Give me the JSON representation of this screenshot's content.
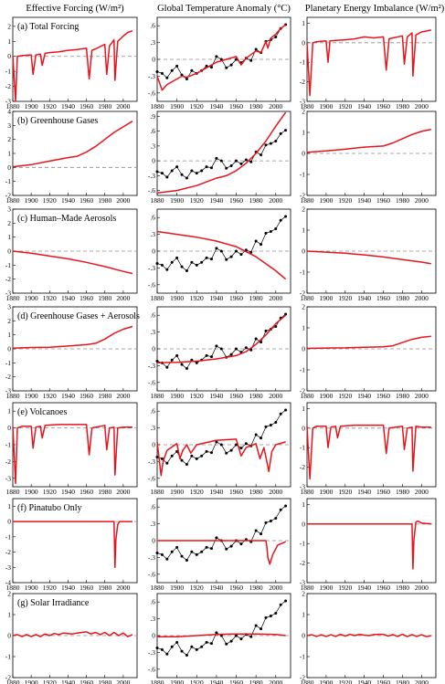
{
  "column_titles": [
    "Effective Forcing (W/m²)",
    "Global Temperature Anomaly (°C)",
    "Planetary Energy Imbalance (W/m²)"
  ],
  "colors": {
    "model": "#e8141c",
    "observed": "#000000",
    "zero_line": "#8c8c8c",
    "frame": "#000000"
  },
  "chart_data": {
    "type": "line",
    "x_ticks": [
      1880,
      1900,
      1920,
      1940,
      1960,
      1980,
      2000
    ],
    "xlim": [
      1880,
      2015
    ],
    "axes": {
      "forcing_yticks": [
        {
          "ylim": [
            -3,
            2.6
          ],
          "ticks": [
            -3,
            -2,
            -1,
            0,
            1,
            2
          ]
        },
        {
          "ylim": [
            -2,
            4
          ],
          "ticks": [
            -2,
            -1,
            0,
            1,
            2,
            3,
            4
          ]
        },
        {
          "ylim": [
            -3,
            3
          ],
          "ticks": [
            -3,
            -2,
            -1,
            0,
            1,
            2,
            3
          ]
        },
        {
          "ylim": [
            -3,
            3
          ],
          "ticks": [
            -3,
            -2,
            -1,
            0,
            1,
            2,
            3
          ]
        },
        {
          "ylim": [
            -3.5,
            1.5
          ],
          "ticks": [
            -3,
            -2,
            -1,
            0,
            1
          ]
        },
        {
          "ylim": [
            -4,
            1.5
          ],
          "ticks": [
            -4,
            -3,
            -2,
            -1,
            0,
            1
          ]
        },
        {
          "ylim": [
            -2,
            2
          ],
          "ticks": [
            -2,
            -1,
            0,
            1,
            2
          ]
        }
      ],
      "temperature_yticks": [
        {
          "ylim": [
            -0.75,
            0.75
          ],
          "ticks": [
            -0.6,
            -0.3,
            0,
            0.3,
            0.6
          ]
        },
        {
          "ylim": [
            -0.7,
            1.0
          ],
          "ticks": [
            -0.6,
            -0.3,
            0,
            0.3,
            0.6,
            0.9
          ]
        },
        {
          "ylim": [
            -0.75,
            0.75
          ],
          "ticks": [
            -0.6,
            -0.3,
            0,
            0.3,
            0.6
          ]
        },
        {
          "ylim": [
            -0.75,
            0.75
          ],
          "ticks": [
            -0.6,
            -0.3,
            0,
            0.3,
            0.6
          ]
        },
        {
          "ylim": [
            -0.75,
            0.75
          ],
          "ticks": [
            -0.6,
            -0.3,
            0,
            0.3,
            0.6
          ]
        },
        {
          "ylim": [
            -0.75,
            0.75
          ],
          "ticks": [
            -0.6,
            -0.3,
            0,
            0.3,
            0.6
          ]
        },
        {
          "ylim": [
            -0.75,
            0.75
          ],
          "ticks": [
            -0.6,
            -0.3,
            0,
            0.3,
            0.6
          ]
        }
      ],
      "imbalance_yticks": [
        {
          "ylim": [
            -3,
            1.3
          ],
          "ticks": [
            -3,
            -2,
            -1,
            0,
            1
          ]
        },
        {
          "ylim": [
            -2,
            2
          ],
          "ticks": [
            -2,
            -1,
            0,
            1,
            2
          ]
        },
        {
          "ylim": [
            -2,
            2
          ],
          "ticks": [
            -2,
            -1,
            0,
            1,
            2
          ]
        },
        {
          "ylim": [
            -2,
            2
          ],
          "ticks": [
            -2,
            -1,
            0,
            1,
            2
          ]
        },
        {
          "ylim": [
            -3,
            1.3
          ],
          "ticks": [
            -3,
            -2,
            -1,
            0,
            1
          ]
        },
        {
          "ylim": [
            -3,
            1.3
          ],
          "ticks": [
            -3,
            -2,
            -1,
            0,
            1
          ]
        },
        {
          "ylim": [
            -2,
            2
          ],
          "ticks": [
            -2,
            -1,
            0,
            1,
            2
          ]
        }
      ]
    },
    "observed_temperature": {
      "years": [
        1880,
        1885,
        1890,
        1895,
        1900,
        1905,
        1910,
        1915,
        1920,
        1925,
        1930,
        1935,
        1940,
        1945,
        1950,
        1955,
        1960,
        1965,
        1970,
        1975,
        1980,
        1985,
        1990,
        1995,
        2000,
        2005,
        2010
      ],
      "values": [
        -0.22,
        -0.25,
        -0.33,
        -0.2,
        -0.12,
        -0.28,
        -0.35,
        -0.2,
        -0.25,
        -0.2,
        -0.12,
        -0.14,
        0.05,
        0.0,
        -0.15,
        -0.1,
        0.0,
        -0.06,
        0.02,
        -0.02,
        0.18,
        0.12,
        0.32,
        0.35,
        0.4,
        0.55,
        0.62
      ]
    },
    "panels": [
      {
        "label": "(a) Total Forcing",
        "forcing": {
          "years": [
            1880,
            1883,
            1885,
            1890,
            1900,
            1902,
            1905,
            1910,
            1912,
            1915,
            1920,
            1930,
            1940,
            1950,
            1960,
            1963,
            1966,
            1970,
            1980,
            1982,
            1985,
            1990,
            1991,
            1994,
            2000,
            2005,
            2010
          ],
          "values": [
            0.0,
            -3.2,
            0.0,
            0.05,
            0.1,
            -1.2,
            0.1,
            0.15,
            -0.6,
            0.2,
            0.25,
            0.3,
            0.4,
            0.45,
            0.55,
            -1.5,
            0.4,
            0.5,
            0.8,
            -1.2,
            0.7,
            1.1,
            -1.6,
            1.0,
            1.35,
            1.6,
            1.7
          ]
        },
        "temperature": {
          "years": [
            1880,
            1885,
            1890,
            1900,
            1905,
            1910,
            1920,
            1930,
            1940,
            1950,
            1960,
            1965,
            1970,
            1980,
            1985,
            1990,
            1992,
            1995,
            2000,
            2005,
            2010
          ],
          "values": [
            -0.3,
            -0.55,
            -0.45,
            -0.35,
            -0.3,
            -0.32,
            -0.25,
            -0.15,
            -0.05,
            0.0,
            0.05,
            -0.1,
            0.02,
            0.15,
            0.12,
            0.32,
            0.2,
            0.38,
            0.45,
            0.55,
            0.62
          ]
        },
        "imbalance": {
          "years": [
            1880,
            1883,
            1886,
            1890,
            1900,
            1902,
            1904,
            1910,
            1920,
            1930,
            1940,
            1950,
            1960,
            1963,
            1966,
            1970,
            1980,
            1982,
            1985,
            1990,
            1991,
            1994,
            2000,
            2005,
            2010
          ],
          "values": [
            0.0,
            -2.7,
            0.0,
            0.05,
            0.1,
            -1.0,
            0.1,
            0.12,
            0.15,
            0.2,
            0.3,
            0.25,
            0.3,
            -1.4,
            0.2,
            0.25,
            0.35,
            -1.1,
            0.3,
            0.5,
            -1.7,
            0.4,
            0.55,
            0.6,
            0.65
          ]
        }
      },
      {
        "label": "(b) Greenhouse Gases",
        "forcing": {
          "years": [
            1880,
            1900,
            1920,
            1940,
            1950,
            1960,
            1970,
            1980,
            1990,
            2000,
            2010
          ],
          "values": [
            0.05,
            0.2,
            0.45,
            0.7,
            0.8,
            1.1,
            1.5,
            2.0,
            2.5,
            2.9,
            3.3
          ]
        },
        "temperature": {
          "years": [
            1880,
            1900,
            1920,
            1940,
            1950,
            1960,
            1970,
            1980,
            1990,
            2000,
            2010
          ],
          "values": [
            -0.65,
            -0.6,
            -0.5,
            -0.35,
            -0.3,
            -0.2,
            -0.05,
            0.15,
            0.4,
            0.7,
            0.98
          ]
        },
        "imbalance": {
          "years": [
            1880,
            1900,
            1920,
            1940,
            1960,
            1970,
            1980,
            1990,
            2000,
            2010
          ],
          "values": [
            0.05,
            0.12,
            0.2,
            0.3,
            0.35,
            0.5,
            0.7,
            0.9,
            1.05,
            1.15
          ]
        }
      },
      {
        "label": "(c) Human–Made Aerosols",
        "forcing": {
          "years": [
            1880,
            1900,
            1920,
            1940,
            1960,
            1980,
            2000,
            2010
          ],
          "values": [
            0.0,
            -0.15,
            -0.35,
            -0.55,
            -0.8,
            -1.1,
            -1.45,
            -1.6
          ]
        },
        "temperature": {
          "years": [
            1880,
            1900,
            1920,
            1940,
            1960,
            1980,
            2000,
            2010
          ],
          "values": [
            0.35,
            0.3,
            0.25,
            0.18,
            0.08,
            -0.1,
            -0.35,
            -0.5
          ]
        },
        "imbalance": {
          "years": [
            1880,
            1900,
            1920,
            1940,
            1960,
            1980,
            2000,
            2010
          ],
          "values": [
            0.0,
            -0.05,
            -0.1,
            -0.18,
            -0.28,
            -0.4,
            -0.52,
            -0.6
          ]
        }
      },
      {
        "label": "(d) Greenhouse Gases + Aerosols",
        "forcing": {
          "years": [
            1880,
            1900,
            1920,
            1940,
            1960,
            1970,
            1980,
            1990,
            2000,
            2010
          ],
          "values": [
            0.05,
            0.1,
            0.12,
            0.2,
            0.3,
            0.4,
            0.7,
            1.1,
            1.4,
            1.6
          ]
        },
        "temperature": {
          "years": [
            1880,
            1900,
            1920,
            1940,
            1960,
            1970,
            1980,
            1990,
            2000,
            2010
          ],
          "values": [
            -0.25,
            -0.24,
            -0.22,
            -0.18,
            -0.12,
            -0.05,
            0.08,
            0.25,
            0.45,
            0.6
          ]
        },
        "imbalance": {
          "years": [
            1880,
            1900,
            1920,
            1940,
            1960,
            1970,
            1980,
            1990,
            2000,
            2010
          ],
          "values": [
            0.02,
            0.04,
            0.05,
            0.08,
            0.1,
            0.15,
            0.3,
            0.45,
            0.55,
            0.6
          ]
        }
      },
      {
        "label": "(e) Volcanoes",
        "forcing": {
          "years": [
            1880,
            1883,
            1885,
            1890,
            1900,
            1902,
            1905,
            1910,
            1912,
            1915,
            1930,
            1960,
            1963,
            1966,
            1980,
            1982,
            1985,
            1990,
            1991,
            1994,
            2000,
            2010
          ],
          "values": [
            0.1,
            -3.3,
            0.0,
            0.1,
            0.1,
            -1.2,
            0.05,
            0.1,
            -0.6,
            0.15,
            0.2,
            0.2,
            -1.6,
            0.0,
            0.15,
            -1.3,
            0.0,
            0.05,
            -2.8,
            0.0,
            0.05,
            0.05
          ]
        },
        "temperature": {
          "years": [
            1880,
            1884,
            1886,
            1890,
            1900,
            1903,
            1906,
            1910,
            1914,
            1920,
            1940,
            1960,
            1965,
            1970,
            1980,
            1984,
            1988,
            1991,
            1993,
            1996,
            2000,
            2010
          ],
          "values": [
            0.05,
            -0.55,
            -0.3,
            -0.1,
            0.02,
            -0.25,
            -0.1,
            0.0,
            -0.15,
            0.0,
            0.08,
            0.1,
            -0.2,
            -0.05,
            0.02,
            -0.25,
            -0.05,
            -0.3,
            -0.48,
            -0.12,
            0.0,
            0.05
          ]
        },
        "imbalance": {
          "years": [
            1880,
            1883,
            1886,
            1890,
            1900,
            1902,
            1905,
            1910,
            1912,
            1915,
            1930,
            1960,
            1963,
            1966,
            1980,
            1982,
            1985,
            1990,
            1991,
            1994,
            2000,
            2010
          ],
          "values": [
            0.1,
            -2.6,
            0.0,
            0.1,
            0.1,
            -1.0,
            0.05,
            0.1,
            -0.5,
            0.1,
            0.15,
            0.15,
            -1.3,
            0.0,
            0.1,
            -1.1,
            0.0,
            0.05,
            -2.2,
            0.1,
            0.05,
            0.05
          ]
        }
      },
      {
        "label": "(f) Pinatubo Only",
        "forcing": {
          "years": [
            1880,
            1990,
            1991,
            1992,
            1994,
            1996,
            2010
          ],
          "values": [
            0.0,
            0.0,
            -3.0,
            -1.2,
            -0.2,
            0.0,
            0.0
          ]
        },
        "temperature": {
          "years": [
            1880,
            1990,
            1991,
            1992,
            1994,
            1997,
            2002,
            2010
          ],
          "values": [
            0.0,
            0.0,
            -0.1,
            -0.3,
            -0.42,
            -0.25,
            -0.08,
            -0.02
          ]
        },
        "imbalance": {
          "years": [
            1880,
            1990,
            1991,
            1992,
            1994,
            1996,
            2000,
            2010
          ],
          "values": [
            0.0,
            0.0,
            -2.3,
            -0.8,
            0.1,
            0.15,
            0.05,
            0.0
          ]
        }
      },
      {
        "label": "(g) Solar Irradiance",
        "forcing": {
          "years": [
            1880,
            1885,
            1890,
            1895,
            1900,
            1905,
            1910,
            1915,
            1920,
            1925,
            1930,
            1935,
            1940,
            1945,
            1950,
            1955,
            1960,
            1965,
            1970,
            1975,
            1980,
            1985,
            1990,
            1995,
            2000,
            2005,
            2010
          ],
          "values": [
            0.0,
            0.05,
            -0.05,
            0.05,
            -0.05,
            0.05,
            -0.05,
            0.08,
            0.0,
            0.1,
            0.05,
            0.12,
            0.1,
            0.08,
            0.12,
            0.15,
            0.18,
            0.08,
            0.15,
            0.05,
            0.15,
            0.0,
            0.15,
            0.0,
            0.12,
            -0.05,
            0.05
          ]
        },
        "temperature": {
          "years": [
            1880,
            1900,
            1920,
            1940,
            1960,
            1980,
            2000,
            2010
          ],
          "values": [
            -0.02,
            -0.02,
            0.0,
            0.02,
            0.03,
            0.03,
            0.02,
            0.0
          ]
        },
        "imbalance": {
          "years": [
            1880,
            1885,
            1890,
            1895,
            1900,
            1905,
            1910,
            1915,
            1920,
            1925,
            1930,
            1935,
            1940,
            1945,
            1950,
            1955,
            1960,
            1965,
            1970,
            1975,
            1980,
            1985,
            1990,
            1995,
            2000,
            2005,
            2010
          ],
          "values": [
            0.0,
            0.04,
            -0.04,
            0.04,
            -0.04,
            0.04,
            -0.04,
            0.06,
            -0.02,
            0.06,
            0.0,
            0.06,
            0.02,
            0.0,
            0.05,
            0.06,
            0.06,
            -0.02,
            0.05,
            -0.04,
            0.06,
            -0.05,
            0.05,
            -0.04,
            0.04,
            -0.05,
            0.0
          ]
        }
      }
    ]
  }
}
